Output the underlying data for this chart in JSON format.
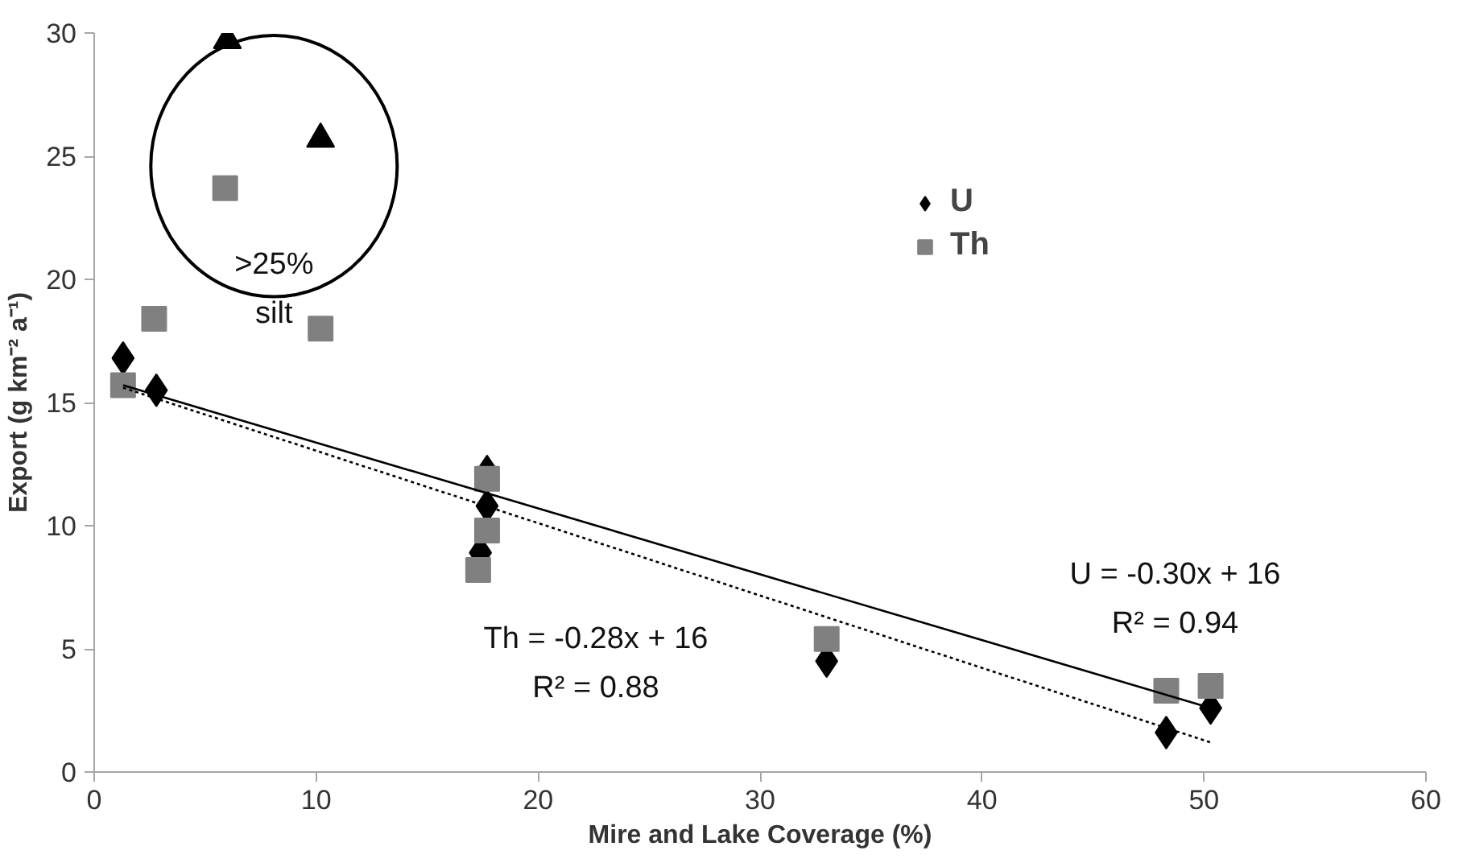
{
  "chart_data": {
    "type": "scatter",
    "xlabel": "Mire and Lake Coverage (%)",
    "ylabel": "Export (g km⁻² a⁻¹)",
    "xlim": [
      0,
      60
    ],
    "ylim": [
      0,
      30
    ],
    "xticks": [
      0,
      10,
      20,
      30,
      40,
      50,
      60
    ],
    "yticks": [
      0,
      5,
      10,
      15,
      20,
      25,
      30
    ],
    "grid": false,
    "legend": "top right",
    "series": [
      {
        "name": "U",
        "color": "#000000",
        "marker": "diamond",
        "x": [
          1.3,
          2.8,
          17.7,
          17.7,
          17.4,
          33.0,
          48.3,
          50.3
        ],
        "values": [
          16.8,
          15.5,
          12.2,
          10.8,
          8.9,
          4.5,
          1.6,
          2.6
        ]
      },
      {
        "name": "Th",
        "color": "#808080",
        "marker": "square",
        "x": [
          1.3,
          2.7,
          5.9,
          10.2,
          17.7,
          17.7,
          17.3,
          33.0,
          48.3,
          50.3
        ],
        "values": [
          15.7,
          18.4,
          23.7,
          18.0,
          11.9,
          9.8,
          8.2,
          5.4,
          3.3,
          3.5
        ]
      },
      {
        "color": "#000000",
        "marker": "triangle",
        "x": [
          6.0,
          10.2
        ],
        "values": [
          29.7,
          25.7
        ]
      },
      {
        "type": "line",
        "color": "#000000",
        "line_style": "solid",
        "x": [
          1.3,
          50.3
        ],
        "values": [
          15.7,
          2.6
        ]
      },
      {
        "type": "line",
        "color": "#000000",
        "line_style": "dotted",
        "x": [
          1.3,
          50.3
        ],
        "values": [
          15.6,
          1.2
        ]
      }
    ],
    "annotations": [
      "Th = -0.28x + 16",
      "R² = 0.88",
      "U = -0.30x + 16",
      "R² = 0.94",
      ">25%",
      "silt"
    ]
  }
}
